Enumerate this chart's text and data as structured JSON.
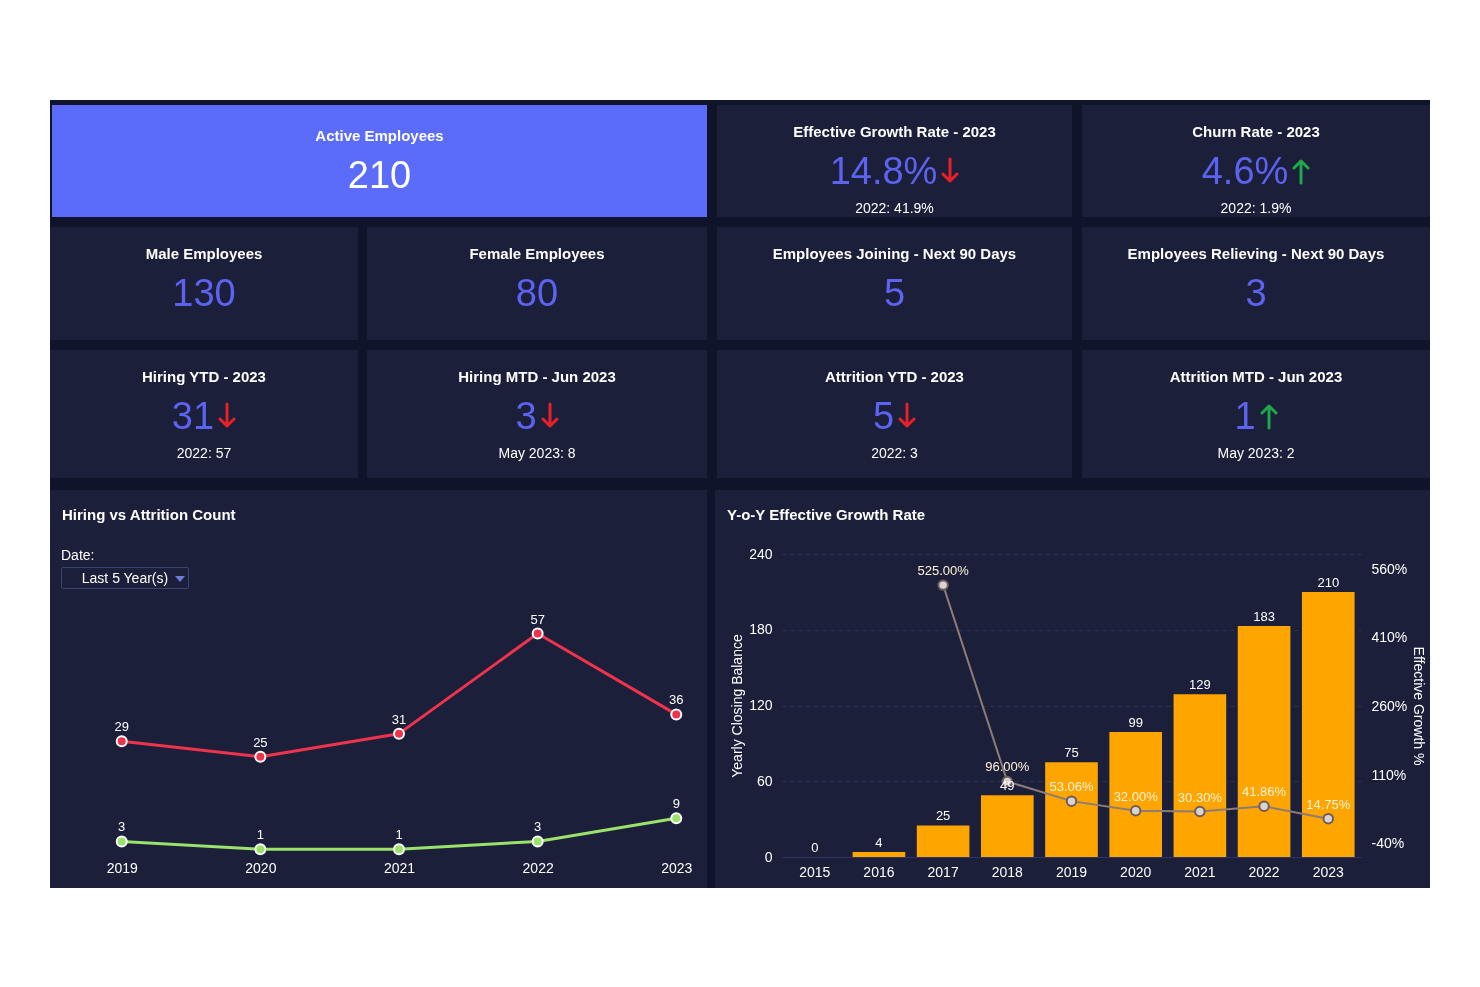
{
  "chart_data": [
    {
      "type": "other",
      "title": "Active Employees",
      "annotations": [
        "210"
      ]
    },
    {
      "type": "other",
      "title": "Effective Growth Rate - 2023",
      "annotations": [
        "14.8%",
        "2022: 41.9%"
      ]
    },
    {
      "type": "other",
      "title": "Churn Rate - 2023",
      "annotations": [
        "4.6%",
        "2022: 1.9%"
      ]
    },
    {
      "type": "other",
      "title": "Male Employees",
      "annotations": [
        "130"
      ]
    },
    {
      "type": "other",
      "title": "Female Employees",
      "annotations": [
        "80"
      ]
    },
    {
      "type": "other",
      "title": "Employees Joining - Next 90 Days",
      "annotations": [
        "5"
      ]
    },
    {
      "type": "other",
      "title": "Employees Relieving - Next 90 Days",
      "annotations": [
        "3"
      ]
    },
    {
      "type": "other",
      "title": "Hiring YTD - 2023",
      "annotations": [
        "31",
        "2022: 57"
      ]
    },
    {
      "type": "other",
      "title": "Hiring MTD - Jun 2023",
      "annotations": [
        "3",
        "May 2023: 8"
      ]
    },
    {
      "type": "other",
      "title": "Attrition YTD - 2023",
      "annotations": [
        "5",
        "2022: 3"
      ]
    },
    {
      "type": "other",
      "title": "Attrition MTD - Jun 2023",
      "annotations": [
        "1",
        "May 2023: 2"
      ]
    },
    {
      "type": "line",
      "title": "Hiring vs Attrition Count",
      "annotations": [
        "Date:",
        "Last 5 Year(s)"
      ],
      "categories": [
        "2019",
        "2020",
        "2021",
        "2022",
        "2023"
      ],
      "tick_labels": "x",
      "data_labels": true,
      "marker": "circle",
      "series": [
        {
          "color": "#f0334d",
          "values": [
            29,
            25,
            31,
            57,
            36
          ]
        },
        {
          "color": "#9be26b",
          "values": [
            3,
            1,
            1,
            3,
            9
          ]
        }
      ]
    },
    {
      "type": "bar",
      "title": "Y-o-Y Effective Growth Rate",
      "ylabel": "Yearly Closing Balance",
      "y2label": "Effective Growth %",
      "categories": [
        "2015",
        "2016",
        "2017",
        "2018",
        "2019",
        "2020",
        "2021",
        "2022",
        "2023"
      ],
      "data_labels": true,
      "marker": "circle",
      "grid": "y",
      "ylim": [
        0,
        240
      ],
      "yticks": [
        0,
        60,
        120,
        180,
        240
      ],
      "y2lim": [
        -69,
        593
      ],
      "y2ticks": [
        {
          "value": -40,
          "label": "-40%"
        },
        {
          "value": 110,
          "label": "110%"
        },
        {
          "value": 260,
          "label": "260%"
        },
        {
          "value": 410,
          "label": "410%"
        },
        {
          "value": 560,
          "label": "560%"
        }
      ],
      "series": [
        {
          "color": "#ffa500",
          "values": [
            0,
            4,
            25,
            49,
            75,
            99,
            129,
            183,
            210
          ]
        },
        {
          "type": "line",
          "axis": "y2",
          "color": "#8c7b77",
          "values": [
            null,
            null,
            525,
            96,
            53.06,
            32,
            30.3,
            41.86,
            14.75
          ],
          "value_labels": [
            null,
            null,
            "525.00%",
            "96.00%",
            "53.06%",
            "32.00%",
            "30.30%",
            "41.86%",
            "14.75%"
          ]
        }
      ]
    }
  ]
}
